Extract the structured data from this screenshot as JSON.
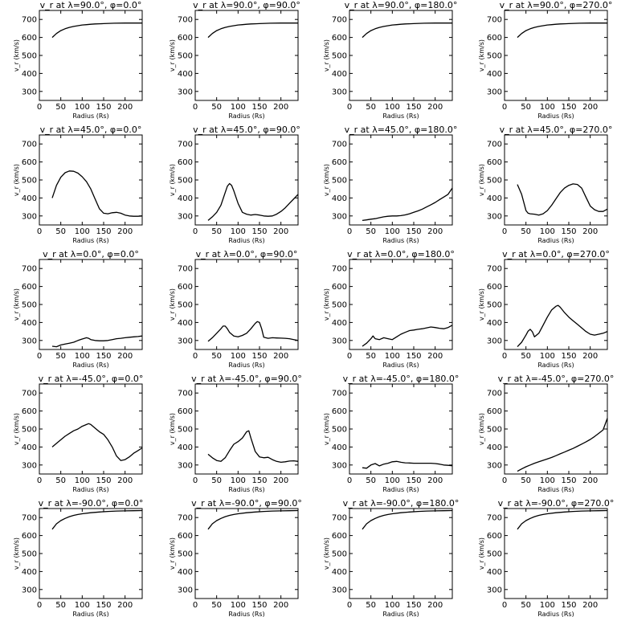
{
  "chart_data": [
    {
      "type": "line",
      "title": "v_r at λ=90.0°, φ=0.0°",
      "xlabel": "Radius (Rs)",
      "ylabel": "v_r (km/s)",
      "xlim": [
        0,
        240
      ],
      "ylim": [
        250,
        750
      ],
      "xticks": [
        0,
        50,
        100,
        150,
        200
      ],
      "yticks": [
        300,
        400,
        500,
        600,
        700
      ],
      "x": [
        30,
        40,
        50,
        60,
        70,
        80,
        90,
        100,
        110,
        120,
        130,
        140,
        150,
        175,
        200,
        240
      ],
      "y": [
        600,
        622,
        638,
        648,
        656,
        661,
        665,
        669,
        671,
        673,
        675,
        676,
        677,
        679,
        680,
        680
      ]
    },
    {
      "type": "line",
      "title": "v_r at λ=90.0°, φ=90.0°",
      "xlabel": "Radius (Rs)",
      "ylabel": "v_r (km/s)",
      "xlim": [
        0,
        240
      ],
      "ylim": [
        250,
        750
      ],
      "xticks": [
        0,
        50,
        100,
        150,
        200
      ],
      "yticks": [
        300,
        400,
        500,
        600,
        700
      ],
      "x": [
        30,
        40,
        50,
        60,
        70,
        80,
        90,
        100,
        110,
        120,
        130,
        140,
        150,
        175,
        200,
        240
      ],
      "y": [
        600,
        622,
        638,
        648,
        656,
        661,
        665,
        669,
        671,
        673,
        675,
        676,
        677,
        679,
        680,
        680
      ]
    },
    {
      "type": "line",
      "title": "v_r at λ=90.0°, φ=180.0°",
      "xlabel": "Radius (Rs)",
      "ylabel": "v_r (km/s)",
      "xlim": [
        0,
        240
      ],
      "ylim": [
        250,
        750
      ],
      "xticks": [
        0,
        50,
        100,
        150,
        200
      ],
      "yticks": [
        300,
        400,
        500,
        600,
        700
      ],
      "x": [
        30,
        40,
        50,
        60,
        70,
        80,
        90,
        100,
        110,
        120,
        130,
        140,
        150,
        175,
        200,
        240
      ],
      "y": [
        600,
        622,
        638,
        648,
        656,
        661,
        665,
        669,
        671,
        673,
        675,
        676,
        677,
        679,
        680,
        680
      ]
    },
    {
      "type": "line",
      "title": "v_r at λ=90.0°, φ=270.0°",
      "xlabel": "Radius (Rs)",
      "ylabel": "v_r (km/s)",
      "xlim": [
        0,
        240
      ],
      "ylim": [
        250,
        750
      ],
      "xticks": [
        0,
        50,
        100,
        150,
        200
      ],
      "yticks": [
        300,
        400,
        500,
        600,
        700
      ],
      "x": [
        30,
        40,
        50,
        60,
        70,
        80,
        90,
        100,
        110,
        120,
        130,
        140,
        150,
        175,
        200,
        240
      ],
      "y": [
        600,
        622,
        638,
        648,
        656,
        661,
        665,
        669,
        671,
        673,
        675,
        676,
        677,
        679,
        680,
        680
      ]
    },
    {
      "type": "line",
      "title": "v_r at λ=45.0°, φ=0.0°",
      "xlabel": "Radius (Rs)",
      "ylabel": "v_r (km/s)",
      "xlim": [
        0,
        240
      ],
      "ylim": [
        250,
        750
      ],
      "xticks": [
        0,
        50,
        100,
        150,
        200
      ],
      "yticks": [
        300,
        400,
        500,
        600,
        700
      ],
      "x": [
        30,
        40,
        50,
        60,
        70,
        80,
        90,
        100,
        110,
        120,
        130,
        140,
        150,
        160,
        170,
        180,
        190,
        200,
        210,
        220,
        230,
        240
      ],
      "y": [
        400,
        470,
        515,
        540,
        550,
        548,
        538,
        518,
        490,
        450,
        395,
        340,
        315,
        312,
        318,
        320,
        315,
        305,
        300,
        298,
        298,
        300
      ]
    },
    {
      "type": "line",
      "title": "v_r at λ=45.0°, φ=90.0°",
      "xlabel": "Radius (Rs)",
      "ylabel": "v_r (km/s)",
      "xlim": [
        0,
        240
      ],
      "ylim": [
        250,
        750
      ],
      "xticks": [
        0,
        50,
        100,
        150,
        200
      ],
      "yticks": [
        300,
        400,
        500,
        600,
        700
      ],
      "x": [
        30,
        40,
        50,
        60,
        70,
        75,
        80,
        85,
        90,
        100,
        110,
        120,
        130,
        140,
        150,
        160,
        170,
        180,
        190,
        200,
        210,
        220,
        230,
        240
      ],
      "y": [
        275,
        295,
        320,
        360,
        430,
        465,
        480,
        470,
        440,
        370,
        320,
        310,
        305,
        308,
        305,
        300,
        298,
        300,
        310,
        325,
        345,
        370,
        395,
        420
      ]
    },
    {
      "type": "line",
      "title": "v_r at λ=45.0°, φ=180.0°",
      "xlabel": "Radius (Rs)",
      "ylabel": "v_r (km/s)",
      "xlim": [
        0,
        240
      ],
      "ylim": [
        250,
        750
      ],
      "xticks": [
        0,
        50,
        100,
        150,
        200
      ],
      "yticks": [
        300,
        400,
        500,
        600,
        700
      ],
      "x": [
        30,
        40,
        50,
        60,
        70,
        80,
        90,
        100,
        110,
        120,
        130,
        140,
        150,
        160,
        170,
        180,
        190,
        200,
        210,
        220,
        230,
        240
      ],
      "y": [
        275,
        278,
        282,
        285,
        290,
        295,
        298,
        300,
        300,
        302,
        306,
        312,
        320,
        328,
        338,
        350,
        362,
        375,
        390,
        405,
        420,
        455
      ]
    },
    {
      "type": "line",
      "title": "v_r at λ=45.0°, φ=270.0°",
      "xlabel": "Radius (Rs)",
      "ylabel": "v_r (km/s)",
      "xlim": [
        0,
        240
      ],
      "ylim": [
        250,
        750
      ],
      "xticks": [
        0,
        50,
        100,
        150,
        200
      ],
      "yticks": [
        300,
        400,
        500,
        600,
        700
      ],
      "x": [
        30,
        40,
        50,
        55,
        60,
        70,
        80,
        90,
        100,
        110,
        120,
        130,
        140,
        150,
        160,
        170,
        180,
        190,
        200,
        210,
        220,
        230,
        240
      ],
      "y": [
        475,
        420,
        330,
        315,
        312,
        310,
        305,
        312,
        330,
        360,
        395,
        430,
        455,
        470,
        478,
        475,
        455,
        405,
        355,
        335,
        325,
        325,
        338
      ]
    },
    {
      "type": "line",
      "title": "v_r at λ=0.0°, φ=0.0°",
      "xlabel": "Radius (Rs)",
      "ylabel": "v_r (km/s)",
      "xlim": [
        0,
        240
      ],
      "ylim": [
        250,
        750
      ],
      "xticks": [
        0,
        50,
        100,
        150,
        200
      ],
      "yticks": [
        300,
        400,
        500,
        600,
        700
      ],
      "x": [
        30,
        40,
        50,
        60,
        70,
        80,
        90,
        100,
        110,
        115,
        120,
        130,
        140,
        150,
        160,
        170,
        180,
        190,
        200,
        210,
        220,
        230,
        240
      ],
      "y": [
        268,
        265,
        275,
        280,
        285,
        290,
        300,
        308,
        315,
        312,
        305,
        300,
        298,
        298,
        300,
        305,
        310,
        312,
        315,
        318,
        320,
        322,
        325
      ]
    },
    {
      "type": "line",
      "title": "v_r at λ=0.0°, φ=90.0°",
      "xlabel": "Radius (Rs)",
      "ylabel": "v_r (km/s)",
      "xlim": [
        0,
        240
      ],
      "ylim": [
        250,
        750
      ],
      "xticks": [
        0,
        50,
        100,
        150,
        200
      ],
      "yticks": [
        300,
        400,
        500,
        600,
        700
      ],
      "x": [
        30,
        40,
        50,
        60,
        65,
        70,
        75,
        80,
        90,
        100,
        110,
        120,
        130,
        140,
        145,
        150,
        155,
        160,
        170,
        180,
        190,
        200,
        210,
        220,
        230,
        240
      ],
      "y": [
        295,
        315,
        340,
        365,
        380,
        380,
        365,
        345,
        325,
        320,
        328,
        340,
        365,
        395,
        405,
        400,
        365,
        318,
        312,
        315,
        314,
        313,
        312,
        310,
        305,
        300
      ]
    },
    {
      "type": "line",
      "title": "v_r at λ=0.0°, φ=180.0°",
      "xlabel": "Radius (Rs)",
      "ylabel": "v_r (km/s)",
      "xlim": [
        0,
        240
      ],
      "ylim": [
        250,
        750
      ],
      "xticks": [
        0,
        50,
        100,
        150,
        200
      ],
      "yticks": [
        300,
        400,
        500,
        600,
        700
      ],
      "x": [
        30,
        40,
        50,
        55,
        60,
        70,
        80,
        90,
        100,
        110,
        120,
        130,
        140,
        150,
        160,
        170,
        180,
        190,
        200,
        210,
        220,
        230,
        240
      ],
      "y": [
        268,
        285,
        310,
        325,
        310,
        305,
        315,
        310,
        305,
        320,
        335,
        345,
        355,
        358,
        362,
        365,
        370,
        375,
        372,
        368,
        365,
        372,
        385
      ]
    },
    {
      "type": "line",
      "title": "v_r at λ=0.0°, φ=270.0°",
      "xlabel": "Radius (Rs)",
      "ylabel": "v_r (km/s)",
      "xlim": [
        0,
        240
      ],
      "ylim": [
        250,
        750
      ],
      "xticks": [
        0,
        50,
        100,
        150,
        200
      ],
      "yticks": [
        300,
        400,
        500,
        600,
        700
      ],
      "x": [
        30,
        40,
        50,
        55,
        60,
        65,
        70,
        80,
        90,
        100,
        110,
        120,
        125,
        130,
        140,
        150,
        160,
        170,
        180,
        190,
        200,
        210,
        220,
        230,
        240
      ],
      "y": [
        265,
        290,
        330,
        352,
        362,
        348,
        320,
        340,
        385,
        430,
        470,
        490,
        495,
        485,
        455,
        430,
        410,
        390,
        370,
        350,
        335,
        330,
        335,
        340,
        350
      ]
    },
    {
      "type": "line",
      "title": "v_r at λ=-45.0°, φ=0.0°",
      "xlabel": "Radius (Rs)",
      "ylabel": "v_r (km/s)",
      "xlim": [
        0,
        240
      ],
      "ylim": [
        250,
        750
      ],
      "xticks": [
        0,
        50,
        100,
        150,
        200
      ],
      "yticks": [
        300,
        400,
        500,
        600,
        700
      ],
      "x": [
        30,
        40,
        50,
        60,
        70,
        80,
        90,
        100,
        110,
        115,
        120,
        130,
        140,
        150,
        160,
        170,
        180,
        190,
        200,
        210,
        220,
        230,
        240
      ],
      "y": [
        400,
        420,
        440,
        460,
        475,
        490,
        500,
        515,
        525,
        530,
        525,
        505,
        485,
        470,
        440,
        400,
        350,
        325,
        330,
        345,
        365,
        380,
        395
      ]
    },
    {
      "type": "line",
      "title": "v_r at λ=-45.0°, φ=90.0°",
      "xlabel": "Radius (Rs)",
      "ylabel": "v_r (km/s)",
      "xlim": [
        0,
        240
      ],
      "ylim": [
        250,
        750
      ],
      "xticks": [
        0,
        50,
        100,
        150,
        200
      ],
      "yticks": [
        300,
        400,
        500,
        600,
        700
      ],
      "x": [
        30,
        40,
        50,
        60,
        70,
        80,
        90,
        100,
        110,
        120,
        125,
        130,
        140,
        150,
        160,
        170,
        180,
        190,
        200,
        210,
        220,
        230,
        240
      ],
      "y": [
        360,
        340,
        325,
        320,
        340,
        380,
        415,
        430,
        450,
        485,
        490,
        450,
        375,
        345,
        340,
        343,
        330,
        320,
        315,
        318,
        322,
        323,
        320
      ]
    },
    {
      "type": "line",
      "title": "v_r at λ=-45.0°, φ=180.0°",
      "xlabel": "Radius (Rs)",
      "ylabel": "v_r (km/s)",
      "xlim": [
        0,
        240
      ],
      "ylim": [
        250,
        750
      ],
      "xticks": [
        0,
        50,
        100,
        150,
        200
      ],
      "yticks": [
        300,
        400,
        500,
        600,
        700
      ],
      "x": [
        30,
        40,
        50,
        60,
        70,
        80,
        90,
        100,
        110,
        120,
        130,
        140,
        150,
        160,
        170,
        180,
        190,
        200,
        210,
        220,
        230,
        240
      ],
      "y": [
        285,
        282,
        300,
        308,
        295,
        305,
        310,
        318,
        320,
        315,
        312,
        311,
        310,
        310,
        310,
        310,
        310,
        308,
        305,
        300,
        298,
        296
      ]
    },
    {
      "type": "line",
      "title": "v_r at λ=-45.0°, φ=270.0°",
      "xlabel": "Radius (Rs)",
      "ylabel": "v_r (km/s)",
      "xlim": [
        0,
        240
      ],
      "ylim": [
        250,
        750
      ],
      "xticks": [
        0,
        50,
        100,
        150,
        200
      ],
      "yticks": [
        300,
        400,
        500,
        600,
        700
      ],
      "x": [
        30,
        40,
        50,
        60,
        70,
        80,
        90,
        100,
        110,
        120,
        130,
        140,
        150,
        160,
        170,
        180,
        190,
        200,
        210,
        220,
        230,
        240
      ],
      "y": [
        265,
        278,
        290,
        300,
        310,
        318,
        326,
        334,
        342,
        352,
        362,
        372,
        382,
        392,
        404,
        416,
        428,
        442,
        458,
        476,
        495,
        560
      ]
    },
    {
      "type": "line",
      "title": "v_r at λ=-90.0°, φ=0.0°",
      "xlabel": "Radius (Rs)",
      "ylabel": "v_r (km/s)",
      "xlim": [
        0,
        240
      ],
      "ylim": [
        250,
        750
      ],
      "xticks": [
        0,
        50,
        100,
        150,
        200
      ],
      "yticks": [
        300,
        400,
        500,
        600,
        700
      ],
      "x": [
        30,
        40,
        50,
        60,
        70,
        80,
        90,
        100,
        120,
        140,
        160,
        180,
        200,
        220,
        240
      ],
      "y": [
        635,
        665,
        683,
        695,
        705,
        712,
        717,
        721,
        727,
        731,
        734,
        736,
        737,
        738,
        739
      ]
    },
    {
      "type": "line",
      "title": "v_r at λ=-90.0°, φ=90.0°",
      "xlabel": "Radius (Rs)",
      "ylabel": "v_r (km/s)",
      "xlim": [
        0,
        240
      ],
      "ylim": [
        250,
        750
      ],
      "xticks": [
        0,
        50,
        100,
        150,
        200
      ],
      "yticks": [
        300,
        400,
        500,
        600,
        700
      ],
      "x": [
        30,
        40,
        50,
        60,
        70,
        80,
        90,
        100,
        120,
        140,
        160,
        180,
        200,
        220,
        240
      ],
      "y": [
        635,
        665,
        683,
        695,
        705,
        712,
        717,
        721,
        727,
        731,
        734,
        736,
        737,
        738,
        739
      ]
    },
    {
      "type": "line",
      "title": "v_r at λ=-90.0°, φ=180.0°",
      "xlabel": "Radius (Rs)",
      "ylabel": "v_r (km/s)",
      "xlim": [
        0,
        240
      ],
      "ylim": [
        250,
        750
      ],
      "xticks": [
        0,
        50,
        100,
        150,
        200
      ],
      "yticks": [
        300,
        400,
        500,
        600,
        700
      ],
      "x": [
        30,
        40,
        50,
        60,
        70,
        80,
        90,
        100,
        120,
        140,
        160,
        180,
        200,
        220,
        240
      ],
      "y": [
        635,
        665,
        683,
        695,
        705,
        712,
        717,
        721,
        727,
        731,
        734,
        736,
        737,
        738,
        739
      ]
    },
    {
      "type": "line",
      "title": "v_r at λ=-90.0°, φ=270.0°",
      "xlabel": "Radius (Rs)",
      "ylabel": "v_r (km/s)",
      "xlim": [
        0,
        240
      ],
      "ylim": [
        250,
        750
      ],
      "xticks": [
        0,
        50,
        100,
        150,
        200
      ],
      "yticks": [
        300,
        400,
        500,
        600,
        700
      ],
      "x": [
        30,
        40,
        50,
        60,
        70,
        80,
        90,
        100,
        120,
        140,
        160,
        180,
        200,
        220,
        240
      ],
      "y": [
        635,
        665,
        683,
        695,
        705,
        712,
        717,
        721,
        727,
        731,
        734,
        736,
        737,
        738,
        739
      ]
    }
  ]
}
